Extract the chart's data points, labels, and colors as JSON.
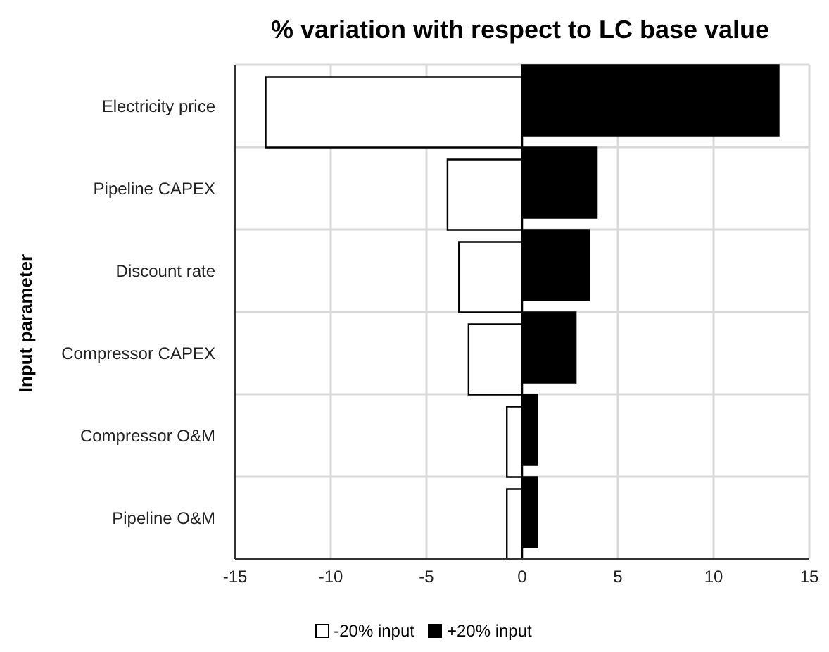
{
  "chart_data": {
    "type": "bar",
    "orientation": "horizontal",
    "title": "% variation with respect to LC base value",
    "ylabel": "Input parameter",
    "categories": [
      "Electricity price",
      "Pipeline CAPEX",
      "Discount rate",
      "Compressor CAPEX",
      "Compressor O&M",
      "Pipeline O&M"
    ],
    "series": [
      {
        "name": "-20% input",
        "color": "#ffffff",
        "values": [
          -13.4,
          -3.9,
          -3.3,
          -2.8,
          -0.8,
          -0.8
        ]
      },
      {
        "name": "+20% input",
        "color": "#000000",
        "values": [
          13.4,
          3.9,
          3.5,
          2.8,
          0.8,
          0.8
        ]
      }
    ],
    "xlim": [
      -15,
      15
    ],
    "xticks": [
      -15,
      -10,
      -5,
      0,
      5,
      10,
      15
    ],
    "grid": true,
    "legend": "bottom"
  }
}
